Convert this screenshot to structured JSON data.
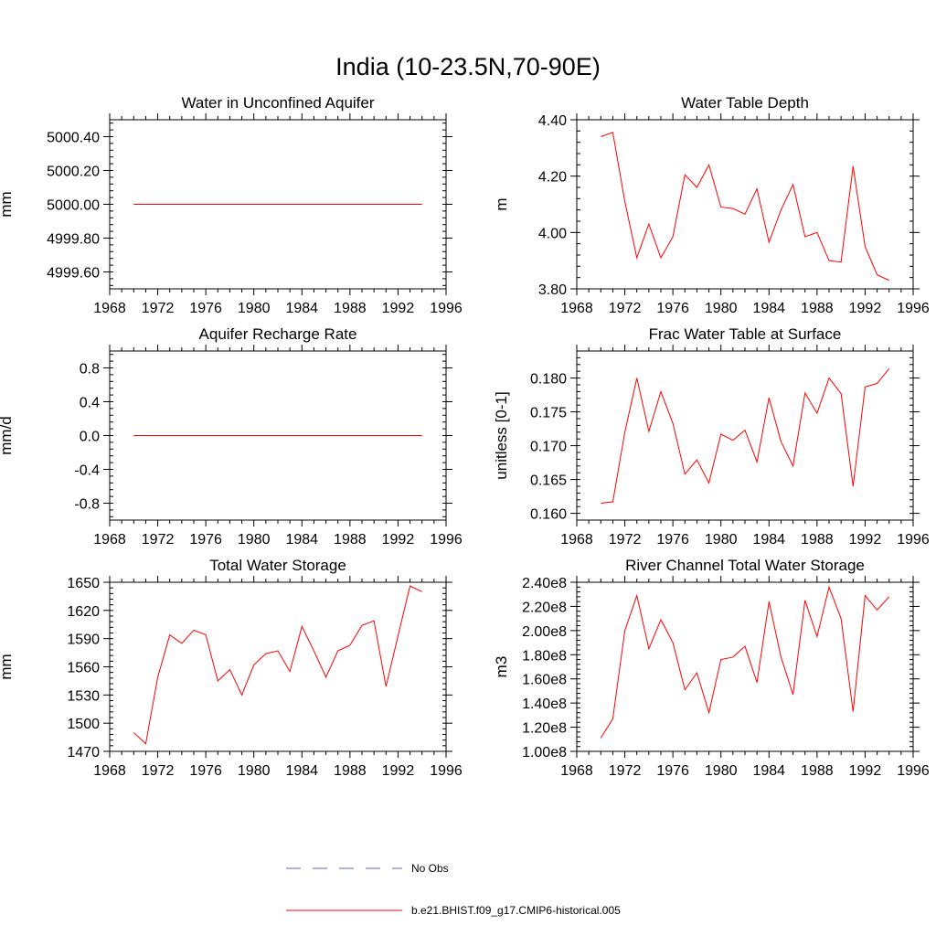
{
  "figure_title": "India (10-23.5N,70-90E)",
  "legend": [
    {
      "label": "No Obs",
      "color": "#5b6bbf",
      "dash": true
    },
    {
      "label": "b.e21.BHIST.f09_g17.CMIP6-historical.005",
      "color": "#ff0000",
      "dash": false
    }
  ],
  "chart_data": [
    {
      "type": "line",
      "title": "Water in Unconfined Aquifer",
      "ylabel": "mm",
      "xlim": [
        1968,
        1996
      ],
      "ylim": [
        4999.5,
        5000.5
      ],
      "xticks": [
        "1968",
        "1972",
        "1976",
        "1980",
        "1984",
        "1988",
        "1992",
        "1996"
      ],
      "yticks": [
        4999.6,
        4999.8,
        5000.0,
        5000.2,
        5000.4
      ],
      "ytick_labels": [
        "4999.60",
        "4999.80",
        "5000.00",
        "5000.20",
        "5000.40"
      ],
      "x": [
        1970,
        1971,
        1972,
        1973,
        1974,
        1975,
        1976,
        1977,
        1978,
        1979,
        1980,
        1981,
        1982,
        1983,
        1984,
        1985,
        1986,
        1987,
        1988,
        1989,
        1990,
        1991,
        1992,
        1993,
        1994
      ],
      "series": [
        {
          "name": "b.e21.BHIST.f09_g17.CMIP6-historical.005",
          "color": "#ff0000",
          "values": [
            5000,
            5000,
            5000,
            5000,
            5000,
            5000,
            5000,
            5000,
            5000,
            5000,
            5000,
            5000,
            5000,
            5000,
            5000,
            5000,
            5000,
            5000,
            5000,
            5000,
            5000,
            5000,
            5000,
            5000,
            5000
          ]
        }
      ]
    },
    {
      "type": "line",
      "title": "Water Table Depth",
      "ylabel": "m",
      "xlim": [
        1968,
        1996
      ],
      "ylim": [
        3.8,
        4.4
      ],
      "xticks": [
        "1968",
        "1972",
        "1976",
        "1980",
        "1984",
        "1988",
        "1992",
        "1996"
      ],
      "yticks": [
        3.8,
        4.0,
        4.2,
        4.4
      ],
      "ytick_labels": [
        "3.80",
        "4.00",
        "4.20",
        "4.40"
      ],
      "x": [
        1970,
        1971,
        1972,
        1973,
        1974,
        1975,
        1976,
        1977,
        1978,
        1979,
        1980,
        1981,
        1982,
        1983,
        1984,
        1985,
        1986,
        1987,
        1988,
        1989,
        1990,
        1991,
        1992,
        1993,
        1994
      ],
      "series": [
        {
          "name": "b.e21.BHIST.f09_g17.CMIP6-historical.005",
          "color": "#ff0000",
          "values": [
            4.34,
            4.355,
            4.11,
            3.91,
            4.03,
            3.91,
            3.985,
            4.205,
            4.16,
            4.24,
            4.09,
            4.085,
            4.065,
            4.155,
            3.965,
            4.08,
            4.17,
            3.985,
            4.0,
            3.9,
            3.895,
            4.235,
            3.95,
            3.85,
            3.83
          ]
        }
      ]
    },
    {
      "type": "line",
      "title": "Aquifer Recharge Rate",
      "ylabel": "mm/d",
      "xlim": [
        1968,
        1996
      ],
      "ylim": [
        -1.0,
        1.0
      ],
      "xticks": [
        "1968",
        "1972",
        "1976",
        "1980",
        "1984",
        "1988",
        "1992",
        "1996"
      ],
      "yticks": [
        -0.8,
        -0.4,
        0.0,
        0.4,
        0.8
      ],
      "ytick_labels": [
        "-0.8",
        "-0.4",
        "0.0",
        "0.4",
        "0.8"
      ],
      "x": [
        1970,
        1971,
        1972,
        1973,
        1974,
        1975,
        1976,
        1977,
        1978,
        1979,
        1980,
        1981,
        1982,
        1983,
        1984,
        1985,
        1986,
        1987,
        1988,
        1989,
        1990,
        1991,
        1992,
        1993,
        1994
      ],
      "series": [
        {
          "name": "b.e21.BHIST.f09_g17.CMIP6-historical.005",
          "color": "#ff0000",
          "values": [
            0,
            0,
            0,
            0,
            0,
            0,
            0,
            0,
            0,
            0,
            0,
            0,
            0,
            0,
            0,
            0,
            0,
            0,
            0,
            0,
            0,
            0,
            0,
            0,
            0
          ]
        }
      ]
    },
    {
      "type": "line",
      "title": "Frac Water Table at Surface",
      "ylabel": "unitless [0-1]",
      "xlim": [
        1968,
        1996
      ],
      "ylim": [
        0.159,
        0.184
      ],
      "xticks": [
        "1968",
        "1972",
        "1976",
        "1980",
        "1984",
        "1988",
        "1992",
        "1996"
      ],
      "yticks": [
        0.16,
        0.165,
        0.17,
        0.175,
        0.18
      ],
      "ytick_labels": [
        "0.160",
        "0.165",
        "0.170",
        "0.175",
        "0.180"
      ],
      "x": [
        1970,
        1971,
        1972,
        1973,
        1974,
        1975,
        1976,
        1977,
        1978,
        1979,
        1980,
        1981,
        1982,
        1983,
        1984,
        1985,
        1986,
        1987,
        1988,
        1989,
        1990,
        1991,
        1992,
        1993,
        1994
      ],
      "series": [
        {
          "name": "b.e21.BHIST.f09_g17.CMIP6-historical.005",
          "color": "#ff0000",
          "values": [
            0.1615,
            0.1617,
            0.172,
            0.18,
            0.1721,
            0.178,
            0.1733,
            0.1658,
            0.1679,
            0.1645,
            0.1717,
            0.1708,
            0.1723,
            0.1676,
            0.1771,
            0.1706,
            0.167,
            0.1778,
            0.1748,
            0.18,
            0.1777,
            0.164,
            0.1787,
            0.1792,
            0.1814
          ]
        }
      ]
    },
    {
      "type": "line",
      "title": "Total Water Storage",
      "ylabel": "mm",
      "xlim": [
        1968,
        1996
      ],
      "ylim": [
        1470,
        1650
      ],
      "xticks": [
        "1968",
        "1972",
        "1976",
        "1980",
        "1984",
        "1988",
        "1992",
        "1996"
      ],
      "yticks": [
        1470,
        1500,
        1530,
        1560,
        1590,
        1620,
        1650
      ],
      "ytick_labels": [
        "1470",
        "1500",
        "1530",
        "1560",
        "1590",
        "1620",
        "1650"
      ],
      "x": [
        1970,
        1971,
        1972,
        1973,
        1974,
        1975,
        1976,
        1977,
        1978,
        1979,
        1980,
        1981,
        1982,
        1983,
        1984,
        1985,
        1986,
        1987,
        1988,
        1989,
        1990,
        1991,
        1992,
        1993,
        1994
      ],
      "series": [
        {
          "name": "b.e21.BHIST.f09_g17.CMIP6-historical.005",
          "color": "#ff0000",
          "values": [
            1490,
            1478,
            1549,
            1594,
            1585,
            1599,
            1594,
            1545,
            1557,
            1530,
            1562,
            1574,
            1577,
            1555,
            1603,
            1577,
            1549,
            1577,
            1583,
            1604,
            1609,
            1539,
            1593,
            1646,
            1640
          ]
        }
      ]
    },
    {
      "type": "line",
      "title": "River Channel Total Water Storage",
      "ylabel": "m3",
      "xlim": [
        1968,
        1996
      ],
      "ylim": [
        100000000,
        240000000
      ],
      "xticks": [
        "1968",
        "1972",
        "1976",
        "1980",
        "1984",
        "1988",
        "1992",
        "1996"
      ],
      "yticks": [
        100000000,
        120000000,
        140000000,
        160000000,
        180000000,
        200000000,
        220000000,
        240000000
      ],
      "ytick_labels": [
        "1.00e8",
        "1.20e8",
        "1.40e8",
        "1.60e8",
        "1.80e8",
        "2.00e8",
        "2.20e8",
        "2.40e8"
      ],
      "x": [
        1970,
        1971,
        1972,
        1973,
        1974,
        1975,
        1976,
        1977,
        1978,
        1979,
        1980,
        1981,
        1982,
        1983,
        1984,
        1985,
        1986,
        1987,
        1988,
        1989,
        1990,
        1991,
        1992,
        1993,
        1994
      ],
      "series": [
        {
          "name": "b.e21.BHIST.f09_g17.CMIP6-historical.005",
          "color": "#ff0000",
          "values": [
            111000000,
            127000000,
            200000000,
            229000000,
            185000000,
            209000000,
            190000000,
            151000000,
            165000000,
            132000000,
            176000000,
            178000000,
            187000000,
            157000000,
            224000000,
            178000000,
            147000000,
            225000000,
            195000000,
            236000000,
            210000000,
            133000000,
            229000000,
            217000000,
            228000000
          ]
        }
      ]
    }
  ]
}
